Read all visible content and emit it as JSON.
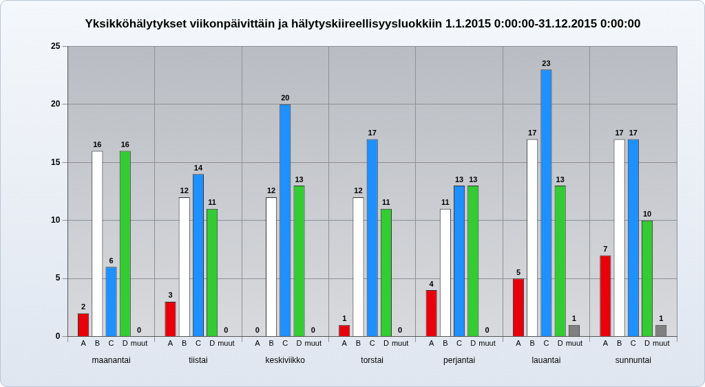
{
  "chart_data": {
    "type": "bar",
    "title": "Yksikköhälytykset viikonpäivittäin ja hälytyskiireellisyysluokkiin 1.1.2015 0:00:00-31.12.2015 0:00:00",
    "categories": [
      "maanantai",
      "tiistai",
      "keskiviikko",
      "torstai",
      "perjantai",
      "lauantai",
      "sunnuntai"
    ],
    "series": [
      {
        "name": "A",
        "color": "#e8000b",
        "values": [
          2,
          3,
          0,
          1,
          4,
          5,
          7
        ]
      },
      {
        "name": "B",
        "color": "#ffffff",
        "values": [
          16,
          12,
          12,
          12,
          11,
          17,
          17
        ]
      },
      {
        "name": "C",
        "color": "#1e90ff",
        "values": [
          6,
          14,
          20,
          17,
          13,
          23,
          17
        ]
      },
      {
        "name": "D",
        "color": "#33cc33",
        "values": [
          16,
          11,
          13,
          11,
          13,
          13,
          10
        ]
      },
      {
        "name": "muut",
        "color": "#808080",
        "values": [
          0,
          0,
          0,
          0,
          0,
          1,
          1
        ]
      }
    ],
    "ylim": [
      0,
      25
    ],
    "yticks": [
      0,
      5,
      10,
      15,
      20,
      25
    ],
    "grid": true,
    "data_labels": true
  }
}
